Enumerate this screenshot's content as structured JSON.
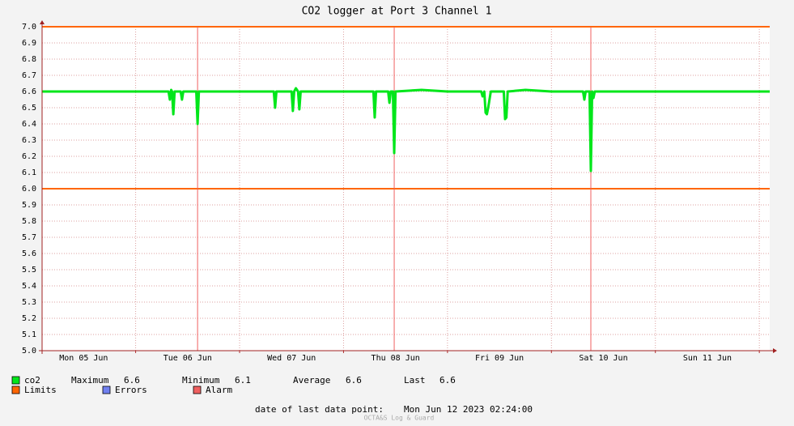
{
  "chart_data": {
    "type": "line",
    "title": "CO2 logger at Port 3 Channel 1",
    "xlim": [
      2.4,
      170.4
    ],
    "xticks": [
      {
        "value": 12,
        "label": "Mon 05 Jun"
      },
      {
        "value": 36,
        "label": "Tue 06 Jun"
      },
      {
        "value": 60,
        "label": "Wed 07 Jun"
      },
      {
        "value": 84,
        "label": "Thu 08 Jun"
      },
      {
        "value": 108,
        "label": "Fri 09 Jun"
      },
      {
        "value": 132,
        "label": "Sat 10 Jun"
      },
      {
        "value": 156,
        "label": "Sun 11 Jun"
      }
    ],
    "xgrid": [
      24,
      48,
      72,
      96,
      120,
      144,
      168
    ],
    "ylim": [
      5,
      7
    ],
    "yticks": [
      {
        "value": 5,
        "label": "5.0"
      },
      5.1,
      5.2,
      5.3,
      5.4,
      5.5,
      5.6,
      5.7,
      5.8,
      5.9,
      {
        "value": 6,
        "label": "6.0"
      },
      6.1,
      6.2,
      6.3,
      6.4,
      6.5,
      6.6,
      6.7,
      6.8,
      6.9,
      {
        "value": 7,
        "label": "7.0"
      }
    ],
    "grid": true,
    "series": [
      {
        "name": "co2",
        "color": "#00e61a",
        "x": [
          2.4,
          8,
          14,
          20,
          26,
          31.6,
          31.9,
          32.2,
          32.4,
          32.7,
          33.0,
          34.4,
          34.7,
          35.0,
          38.0,
          38.3,
          38.6,
          44,
          50,
          55.9,
          56.2,
          56.5,
          60.0,
          60.3,
          60.6,
          61.0,
          61.5,
          61.8,
          62.1,
          68,
          74,
          78.9,
          79.2,
          79.5,
          82.3,
          82.6,
          82.9,
          83.4,
          83.7,
          84.0,
          90,
          96,
          103.8,
          104.1,
          104.5,
          104.8,
          105.1,
          105.4,
          105.7,
          106.0,
          109.0,
          109.3,
          109.6,
          109.9,
          114,
          120,
          127.3,
          127.6,
          127.9,
          128.8,
          129.1,
          129.4,
          129.7,
          130.0,
          136,
          142,
          148,
          154,
          160,
          166,
          170.4
        ],
        "values": [
          6.6,
          6.6,
          6.6,
          6.6,
          6.6,
          6.6,
          6.55,
          6.61,
          6.6,
          6.46,
          6.6,
          6.6,
          6.55,
          6.6,
          6.6,
          6.4,
          6.6,
          6.6,
          6.6,
          6.6,
          6.5,
          6.6,
          6.6,
          6.48,
          6.6,
          6.62,
          6.6,
          6.49,
          6.6,
          6.6,
          6.6,
          6.6,
          6.44,
          6.6,
          6.6,
          6.53,
          6.6,
          6.6,
          6.22,
          6.6,
          6.61,
          6.6,
          6.6,
          6.57,
          6.6,
          6.47,
          6.46,
          6.5,
          6.55,
          6.6,
          6.6,
          6.43,
          6.44,
          6.6,
          6.61,
          6.6,
          6.6,
          6.55,
          6.6,
          6.6,
          6.11,
          6.6,
          6.56,
          6.6,
          6.6,
          6.6,
          6.6,
          6.6,
          6.6,
          6.6,
          6.6
        ]
      }
    ],
    "stats": [
      {
        "label": "Maximum",
        "value": 6.6
      },
      {
        "label": "Minimum",
        "value": 6.1
      },
      {
        "label": "Average",
        "value": 6.6
      },
      {
        "label": "Last",
        "value": 6.6
      }
    ],
    "limits": {
      "name": "Limits",
      "color": "#ff6600",
      "values": [
        6,
        7
      ]
    },
    "errors": {
      "name": "Errors",
      "color": "#7080f0"
    },
    "alarms": {
      "name": "Alarm",
      "color": "#f06060",
      "x": [
        38.3,
        83.7,
        129.1
      ]
    },
    "footer_label": "date of last data point:",
    "footer_value": "Mon Jun 12 2023 02:24:00",
    "watermark": "OCTA&S Log & Guard"
  }
}
